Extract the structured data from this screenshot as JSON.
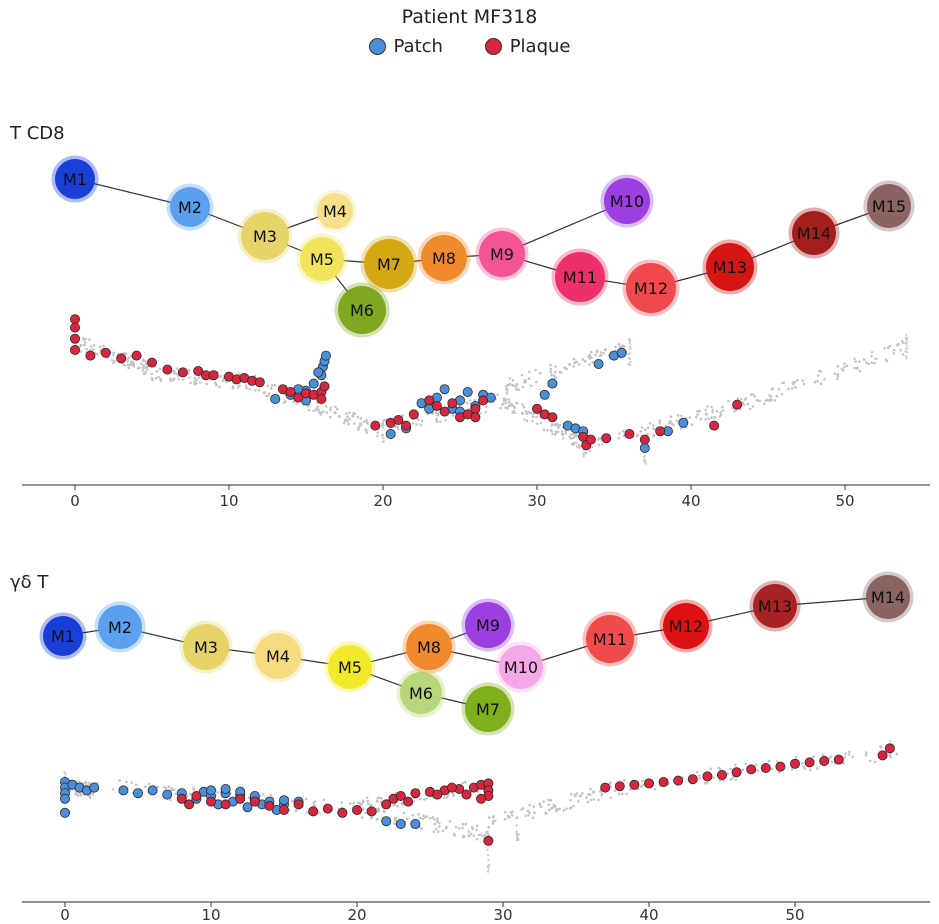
{
  "title": "Patient MF318",
  "legend": [
    {
      "name": "Patch",
      "color": "#4a8fd9"
    },
    {
      "name": "Plaque",
      "color": "#d7263d"
    }
  ],
  "chart_data": [
    {
      "type": "scatter",
      "panel": "T CD8",
      "xlim": [
        -3,
        56
      ],
      "x_ticks": [
        0,
        10,
        20,
        30,
        40,
        50
      ],
      "nodes": [
        {
          "label": "M1",
          "color": "#1a3fd8"
        },
        {
          "label": "M2",
          "color": "#5aa0ee"
        },
        {
          "label": "M3",
          "color": "#e6d36a"
        },
        {
          "label": "M4",
          "color": "#f5e08e"
        },
        {
          "label": "M5",
          "color": "#f1e45a"
        },
        {
          "label": "M6",
          "color": "#7fa820"
        },
        {
          "label": "M7",
          "color": "#d4a812"
        },
        {
          "label": "M8",
          "color": "#f08a2c"
        },
        {
          "label": "M9",
          "color": "#f25496"
        },
        {
          "label": "M10",
          "color": "#9b3fe0"
        },
        {
          "label": "M11",
          "color": "#ee2f6a"
        },
        {
          "label": "M12",
          "color": "#f0484c"
        },
        {
          "label": "M13",
          "color": "#d61515"
        },
        {
          "label": "M14",
          "color": "#a51e1e"
        },
        {
          "label": "M15",
          "color": "#8a6363"
        }
      ],
      "edges": [
        [
          "M1",
          "M2"
        ],
        [
          "M2",
          "M3"
        ],
        [
          "M3",
          "M4"
        ],
        [
          "M3",
          "M5"
        ],
        [
          "M5",
          "M6"
        ],
        [
          "M5",
          "M7"
        ],
        [
          "M7",
          "M8"
        ],
        [
          "M8",
          "M9"
        ],
        [
          "M9",
          "M10"
        ],
        [
          "M9",
          "M11"
        ],
        [
          "M11",
          "M12"
        ],
        [
          "M12",
          "M13"
        ],
        [
          "M13",
          "M14"
        ],
        [
          "M14",
          "M15"
        ]
      ],
      "patch_points": [
        [
          13,
          -0.25
        ],
        [
          14,
          -0.1
        ],
        [
          15,
          0.05
        ],
        [
          15.5,
          0.3
        ],
        [
          16,
          0.6
        ],
        [
          16.1,
          0.9
        ],
        [
          16.2,
          1.1
        ],
        [
          16.3,
          1.3
        ],
        [
          15.8,
          0.7
        ],
        [
          14.5,
          0.1
        ],
        [
          15,
          -0.3
        ],
        [
          20.5,
          -1.5
        ],
        [
          21.5,
          -1.3
        ],
        [
          22.5,
          -0.4
        ],
        [
          23.5,
          -0.2
        ],
        [
          24,
          0.1
        ],
        [
          24.5,
          -0.6
        ],
        [
          25,
          -0.3
        ],
        [
          25.5,
          0.0
        ],
        [
          26,
          -0.5
        ],
        [
          26.5,
          -0.1
        ],
        [
          27,
          -0.2
        ],
        [
          25,
          -0.7
        ],
        [
          23,
          -0.6
        ],
        [
          30.5,
          -0.1
        ],
        [
          31,
          0.3
        ],
        [
          32,
          -1.2
        ],
        [
          32.5,
          -1.3
        ],
        [
          33,
          -1.4
        ],
        [
          34,
          1.0
        ],
        [
          35,
          1.3
        ],
        [
          35.5,
          1.4
        ],
        [
          37,
          -2.0
        ],
        [
          38.5,
          -1.4
        ],
        [
          39.5,
          -1.1
        ]
      ],
      "plaque_points": [
        [
          0,
          2.6
        ],
        [
          0,
          2.3
        ],
        [
          0,
          1.9
        ],
        [
          0,
          1.5
        ],
        [
          1,
          1.3
        ],
        [
          2,
          1.4
        ],
        [
          3,
          1.2
        ],
        [
          4,
          1.3
        ],
        [
          5,
          1.05
        ],
        [
          6,
          0.8
        ],
        [
          7,
          0.7
        ],
        [
          8,
          0.75
        ],
        [
          8.5,
          0.6
        ],
        [
          9,
          0.6
        ],
        [
          10,
          0.55
        ],
        [
          10.5,
          0.45
        ],
        [
          11,
          0.5
        ],
        [
          11.5,
          0.4
        ],
        [
          12,
          0.35
        ],
        [
          13.5,
          0.1
        ],
        [
          14.5,
          -0.2
        ],
        [
          15,
          -0.05
        ],
        [
          15.5,
          -0.1
        ],
        [
          16,
          0.0
        ],
        [
          16.2,
          0.2
        ],
        [
          14,
          0.0
        ],
        [
          16,
          -0.25
        ],
        [
          19.5,
          -1.2
        ],
        [
          20.5,
          -1.1
        ],
        [
          21,
          -1.0
        ],
        [
          21.5,
          -1.2
        ],
        [
          22,
          -0.8
        ],
        [
          23,
          -0.3
        ],
        [
          23.5,
          -0.5
        ],
        [
          24,
          -0.7
        ],
        [
          24.5,
          -0.4
        ],
        [
          25,
          -0.9
        ],
        [
          25.5,
          -0.8
        ],
        [
          26,
          -0.6
        ],
        [
          26.5,
          -0.3
        ],
        [
          26,
          -0.9
        ],
        [
          30,
          -0.6
        ],
        [
          30.5,
          -0.8
        ],
        [
          31,
          -0.9
        ],
        [
          33,
          -1.6
        ],
        [
          33.2,
          -1.9
        ],
        [
          33.5,
          -1.7
        ],
        [
          34.5,
          -1.65
        ],
        [
          36,
          -1.5
        ],
        [
          37,
          -1.7
        ],
        [
          38,
          -1.4
        ],
        [
          41.5,
          -1.2
        ],
        [
          43,
          -0.45
        ]
      ]
    },
    {
      "type": "scatter",
      "panel": "γδ T",
      "xlim": [
        -3,
        58
      ],
      "x_ticks": [
        0,
        10,
        20,
        30,
        40,
        50
      ],
      "nodes": [
        {
          "label": "M1",
          "color": "#1a3fd8"
        },
        {
          "label": "M2",
          "color": "#5aa0ee"
        },
        {
          "label": "M3",
          "color": "#e6d36a"
        },
        {
          "label": "M4",
          "color": "#f5dc80"
        },
        {
          "label": "M5",
          "color": "#f2ea28"
        },
        {
          "label": "M6",
          "color": "#b9d679"
        },
        {
          "label": "M7",
          "color": "#7fb01c"
        },
        {
          "label": "M8",
          "color": "#f08a2c"
        },
        {
          "label": "M9",
          "color": "#9b3fe0"
        },
        {
          "label": "M10",
          "color": "#f5a8e8"
        },
        {
          "label": "M11",
          "color": "#f04a4a"
        },
        {
          "label": "M12",
          "color": "#dd1111"
        },
        {
          "label": "M13",
          "color": "#a82424"
        },
        {
          "label": "M14",
          "color": "#8a6363"
        }
      ],
      "edges": [
        [
          "M1",
          "M2"
        ],
        [
          "M2",
          "M3"
        ],
        [
          "M3",
          "M4"
        ],
        [
          "M4",
          "M5"
        ],
        [
          "M5",
          "M8"
        ],
        [
          "M5",
          "M6"
        ],
        [
          "M6",
          "M7"
        ],
        [
          "M8",
          "M9"
        ],
        [
          "M8",
          "M10"
        ],
        [
          "M10",
          "M11"
        ],
        [
          "M11",
          "M12"
        ],
        [
          "M12",
          "M13"
        ],
        [
          "M13",
          "M14"
        ]
      ],
      "patch_points": [
        [
          0,
          0.5
        ],
        [
          0,
          0.3
        ],
        [
          0,
          0.1
        ],
        [
          0,
          -0.1
        ],
        [
          0,
          -0.6
        ],
        [
          0.5,
          0.4
        ],
        [
          1,
          0.3
        ],
        [
          1.5,
          0.2
        ],
        [
          2,
          0.3
        ],
        [
          4,
          0.2
        ],
        [
          5,
          0.1
        ],
        [
          6,
          0.2
        ],
        [
          7,
          0.05
        ],
        [
          8,
          0.1
        ],
        [
          9,
          -0.1
        ],
        [
          9.5,
          0.15
        ],
        [
          10,
          0.0
        ],
        [
          10.5,
          -0.3
        ],
        [
          11,
          0.1
        ],
        [
          11.5,
          -0.2
        ],
        [
          12,
          0.05
        ],
        [
          12.5,
          -0.4
        ],
        [
          13,
          -0.1
        ],
        [
          13.5,
          -0.3
        ],
        [
          14,
          -0.2
        ],
        [
          14.5,
          -0.5
        ],
        [
          15,
          -0.3
        ],
        [
          16,
          -0.2
        ],
        [
          10,
          0.2
        ],
        [
          11,
          0.25
        ],
        [
          12,
          0.15
        ],
        [
          13,
          0.0
        ],
        [
          15,
          -0.15
        ],
        [
          22,
          -0.9
        ],
        [
          23,
          -1.0
        ],
        [
          24,
          -1.0
        ]
      ],
      "plaque_points": [
        [
          8,
          -0.1
        ],
        [
          8.5,
          -0.3
        ],
        [
          9,
          0.0
        ],
        [
          10,
          -0.2
        ],
        [
          11,
          -0.3
        ],
        [
          12,
          -0.1
        ],
        [
          13,
          -0.2
        ],
        [
          14,
          -0.35
        ],
        [
          15,
          -0.5
        ],
        [
          16,
          -0.3
        ],
        [
          17,
          -0.55
        ],
        [
          18,
          -0.45
        ],
        [
          19,
          -0.6
        ],
        [
          20,
          -0.5
        ],
        [
          21,
          -0.55
        ],
        [
          22,
          -0.3
        ],
        [
          22.5,
          -0.1
        ],
        [
          23,
          0.0
        ],
        [
          24,
          0.1
        ],
        [
          25,
          0.15
        ],
        [
          26,
          0.2
        ],
        [
          27,
          0.25
        ],
        [
          28,
          0.3
        ],
        [
          28.5,
          0.4
        ],
        [
          29,
          0.45
        ],
        [
          29,
          0.2
        ],
        [
          29,
          0.0
        ],
        [
          28.5,
          -0.1
        ],
        [
          26.5,
          0.3
        ],
        [
          27.5,
          0.05
        ],
        [
          25.5,
          0.05
        ],
        [
          23.5,
          -0.2
        ],
        [
          29,
          -1.6
        ],
        [
          37,
          0.3
        ],
        [
          38,
          0.35
        ],
        [
          39,
          0.4
        ],
        [
          40,
          0.45
        ],
        [
          41,
          0.5
        ],
        [
          42,
          0.55
        ],
        [
          43,
          0.6
        ],
        [
          44,
          0.7
        ],
        [
          45,
          0.75
        ],
        [
          46,
          0.85
        ],
        [
          47,
          0.95
        ],
        [
          48,
          1.0
        ],
        [
          49,
          1.05
        ],
        [
          50,
          1.15
        ],
        [
          51,
          1.2
        ],
        [
          52,
          1.25
        ],
        [
          53,
          1.3
        ],
        [
          56,
          1.45
        ],
        [
          56.5,
          1.7
        ]
      ]
    }
  ]
}
